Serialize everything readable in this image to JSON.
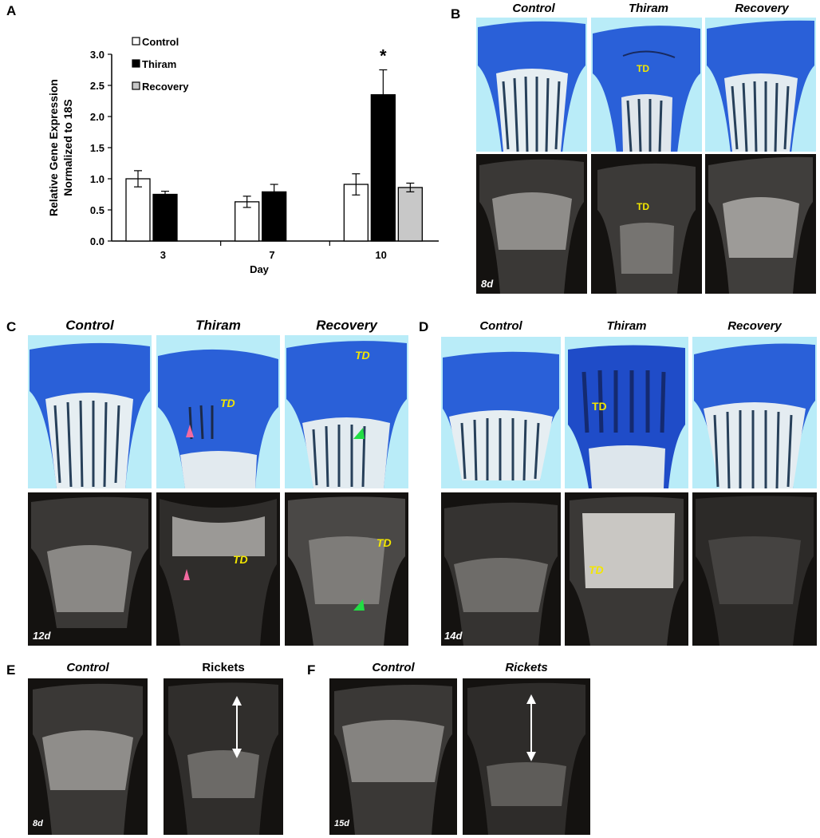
{
  "panels": {
    "A": {
      "label": "A"
    },
    "B": {
      "label": "B",
      "columns": [
        "Control",
        "Thiram",
        "Recovery"
      ],
      "td": "TD",
      "day": "8d"
    },
    "C": {
      "label": "C",
      "columns": [
        "Control",
        "Thiram",
        "Recovery"
      ],
      "td": "TD",
      "day": "12d"
    },
    "D": {
      "label": "D",
      "columns": [
        "Control",
        "Thiram",
        "Recovery"
      ],
      "td": "TD",
      "day": "14d"
    },
    "E": {
      "label": "E",
      "columns": [
        "Control",
        "Rickets"
      ],
      "day": "8d"
    },
    "F": {
      "label": "F",
      "columns": [
        "Control",
        "Rickets"
      ],
      "day": "15d"
    }
  },
  "chart_data": {
    "type": "bar",
    "title": "",
    "xlabel": "Day",
    "ylabel": "Relative Gene Expression Normalized to 18S",
    "ylabel_lines": [
      "Relative Gene Expression",
      "Normalized to 18S"
    ],
    "ylim": [
      0,
      3.0
    ],
    "yticks": [
      "0.0",
      "0.5",
      "1.0",
      "1.5",
      "2.0",
      "2.5",
      "3.0"
    ],
    "categories": [
      "3",
      "7",
      "10"
    ],
    "series": [
      {
        "name": "Control",
        "color": "#ffffff",
        "values": [
          1.0,
          0.63,
          0.91
        ],
        "errors": [
          0.13,
          0.09,
          0.17
        ]
      },
      {
        "name": "Thiram",
        "color": "#000000",
        "values": [
          0.75,
          0.79,
          2.35
        ],
        "errors": [
          0.05,
          0.12,
          0.4
        ]
      },
      {
        "name": "Recovery",
        "color": "#c8c8c8",
        "values": [
          null,
          null,
          0.86
        ],
        "errors": [
          null,
          null,
          0.07
        ]
      }
    ],
    "annotations": [
      {
        "text": "*",
        "category": "10",
        "series": "Thiram"
      }
    ],
    "legend": "top-left"
  }
}
